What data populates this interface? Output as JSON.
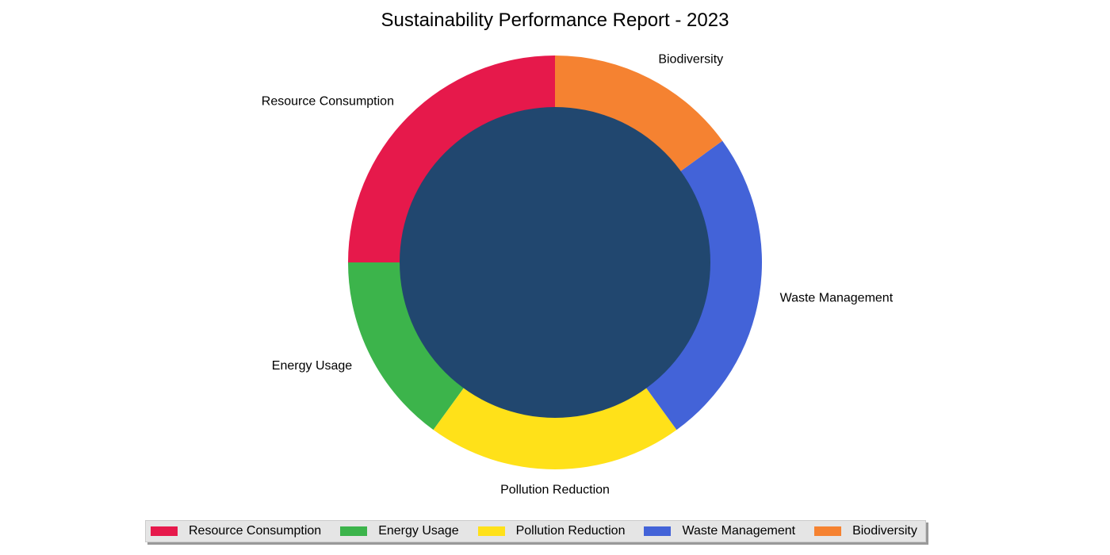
{
  "chart_data": {
    "type": "pie",
    "variant": "donut",
    "title": "Sustainability Performance Report - 2023",
    "slices": [
      {
        "label": "Resource Consumption",
        "value": 25,
        "color": "#e6194b"
      },
      {
        "label": "Energy Usage",
        "value": 15,
        "color": "#3cb44b"
      },
      {
        "label": "Pollution Reduction",
        "value": 20,
        "color": "#ffe119"
      },
      {
        "label": "Waste Management",
        "value": 25,
        "color": "#4363d8"
      },
      {
        "label": "Biodiversity",
        "value": 15,
        "color": "#f58231"
      }
    ],
    "center_color": "#21476f",
    "direction": "counterclockwise",
    "start": "top",
    "legend_position": "bottom-center"
  }
}
